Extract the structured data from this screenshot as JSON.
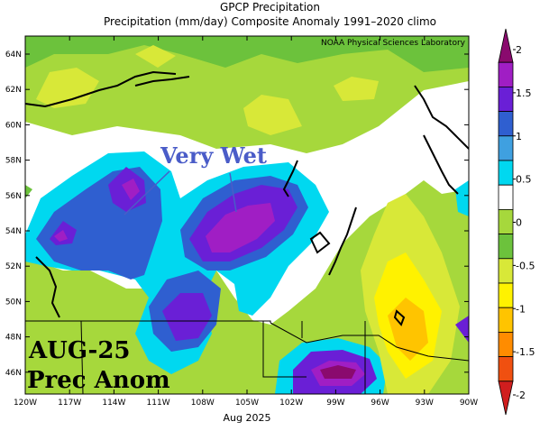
{
  "header": {
    "title": "GPCP Precipitation",
    "subtitle": "Precipitation (mm/day) Composite Anomaly 1991–2020 climo"
  },
  "map": {
    "credit": "NOAA Physical Sciences Laboratory",
    "annotation": "Very Wet",
    "label_line1": "AUG-25",
    "label_line2": "Prec Anom",
    "footer": "Aug 2025",
    "lat_labels": [
      "64N",
      "62N",
      "60N",
      "58N",
      "56N",
      "54N",
      "52N",
      "50N",
      "48N",
      "46N"
    ],
    "lon_labels": [
      "120W",
      "117W",
      "114W",
      "111W",
      "108W",
      "105W",
      "102W",
      "99W",
      "96W",
      "93W",
      "90W"
    ]
  },
  "colorbar": {
    "tick_labels": [
      "2",
      "1.5",
      "1",
      "0.5",
      "0",
      "-0.5",
      "-1",
      "-1.5",
      "-2"
    ],
    "colors": [
      "#8a0a6e",
      "#a01ec4",
      "#6a1fd6",
      "#2f5fd0",
      "#3fa0e0",
      "#00d8f0",
      "#ffffff",
      "#a6d83c",
      "#6cc23c",
      "#d8e838",
      "#fff200",
      "#ffc400",
      "#ff8c00",
      "#f05010",
      "#d01e1e"
    ]
  }
}
